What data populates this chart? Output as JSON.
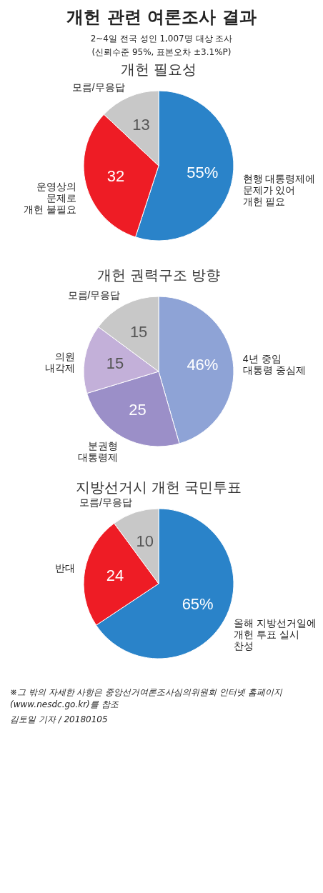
{
  "chart_data": [
    {
      "type": "pie",
      "title": "개헌 필요성",
      "annotations": [
        "개헌 관련 여론조사 결과",
        "2~4일 전국 성인 1,007명 대상 조사",
        "(신뢰수준 95%, 표본오차 ±3.1%P)"
      ],
      "categories": [
        "현행 대통령제에\n문제가 있어\n개헌 필요",
        "운영상의\n문제로\n개헌 불필요",
        "모름/무응답"
      ],
      "values": [
        55,
        32,
        13
      ],
      "value_labels": [
        "55%",
        "32",
        "13"
      ],
      "colors": [
        "#2a83c9",
        "#ee1c25",
        "#c8c8c8"
      ]
    },
    {
      "type": "pie",
      "title": "개헌 권력구조 방향",
      "categories": [
        "4년 중임\n대통령 중심제",
        "분권형\n대통령제",
        "의원\n내각제",
        "모름/무응답"
      ],
      "values": [
        46,
        25,
        15,
        15
      ],
      "value_labels": [
        "46%",
        "25",
        "15",
        "15"
      ],
      "colors": [
        "#8ea3d6",
        "#9b8fc8",
        "#c3b0d9",
        "#c8c8c8"
      ]
    },
    {
      "type": "pie",
      "title": "지방선거시 개헌 국민투표",
      "annotations": [
        "※그 밖의 자세한 사항은 중앙선거여론조사심의위원회 인터넷 홈페이지(www.nesdc.go.kr)를 참조",
        "김토일 기자 / 20180105"
      ],
      "categories": [
        "올해 지방선거일에\n개헌 투표 실시\n찬성",
        "반대",
        "모름/무응답"
      ],
      "values": [
        65,
        24,
        10
      ],
      "value_labels": [
        "65%",
        "24",
        "10"
      ],
      "colors": [
        "#2a83c9",
        "#ee1c25",
        "#c8c8c8"
      ]
    }
  ]
}
